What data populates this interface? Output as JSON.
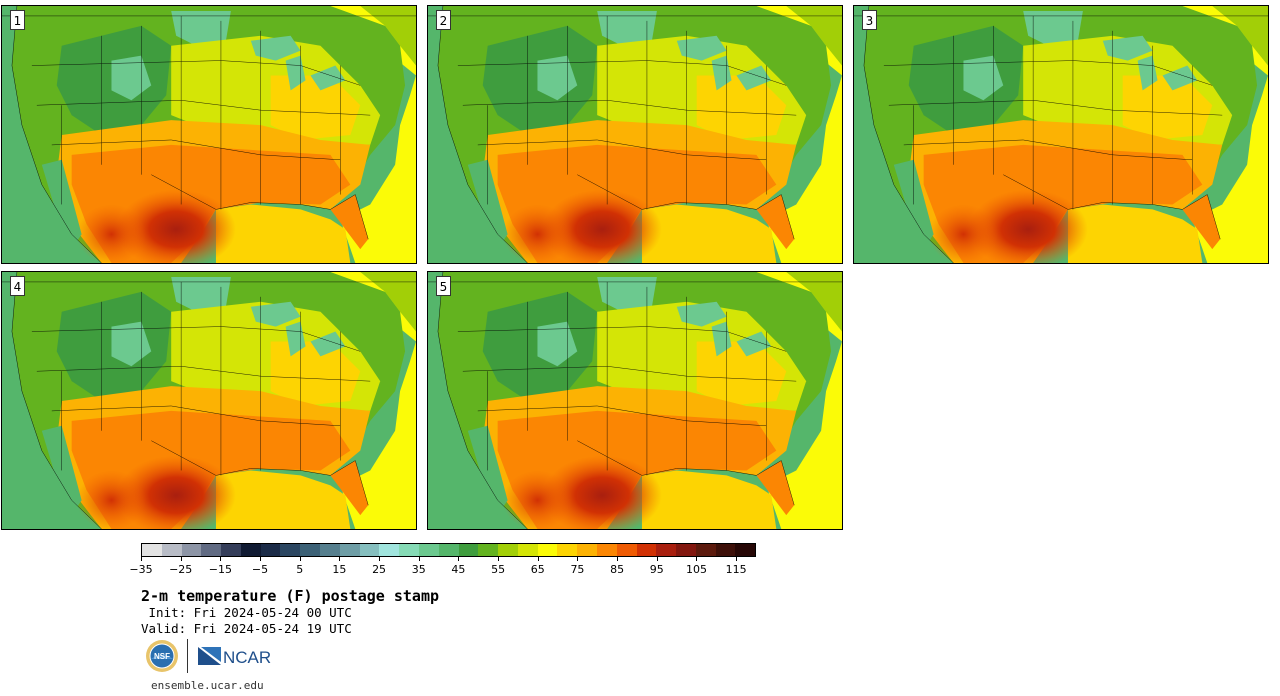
{
  "panels": [
    {
      "label": "1"
    },
    {
      "label": "2"
    },
    {
      "label": "3"
    },
    {
      "label": "4"
    },
    {
      "label": "5"
    }
  ],
  "colorbar": {
    "min": -35,
    "max": 120,
    "step": 5,
    "tick_labels": [
      "−35",
      "−25",
      "−15",
      "−5",
      "5",
      "15",
      "25",
      "35",
      "45",
      "55",
      "65",
      "75",
      "85",
      "95",
      "105",
      "115"
    ],
    "tick_values": [
      -35,
      -25,
      -15,
      -5,
      5,
      15,
      25,
      35,
      45,
      55,
      65,
      75,
      85,
      95,
      105,
      115
    ],
    "colors": [
      "#e3e3e3",
      "#b8bcc6",
      "#8d95a6",
      "#606a82",
      "#353e5a",
      "#111b33",
      "#1c2c48",
      "#2b4661",
      "#3c6176",
      "#567f8e",
      "#6f9ea6",
      "#86bfbf",
      "#a1e5de",
      "#86dbb6",
      "#6cc98f",
      "#55b66b",
      "#3f9d3e",
      "#63b31f",
      "#a2cf07",
      "#d4e506",
      "#fbfb07",
      "#fdd402",
      "#fcb203",
      "#fb8603",
      "#ef5b03",
      "#d13104",
      "#a91f0f",
      "#82170f",
      "#5c1a0d",
      "#3d1009",
      "#260705"
    ]
  },
  "title": "2-m temperature (F) postage stamp",
  "init_line": " Init: Fri 2024-05-24 00 UTC",
  "valid_line": "Valid: Fri 2024-05-24 19 UTC",
  "logos": {
    "nsf_text": "NSF",
    "ncar_text": "NCAR"
  },
  "url": "ensemble.ucar.edu"
}
